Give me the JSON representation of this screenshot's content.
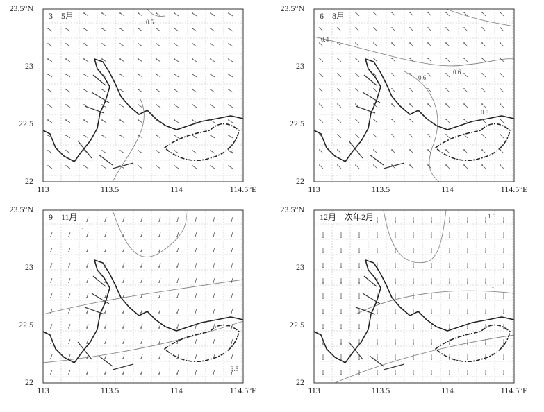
{
  "panels": [
    {
      "label": "3—5月",
      "x_tick_labels": [
        "113",
        "113.5",
        "114",
        "114.5°E"
      ],
      "y_tick_labels": [
        "23.5°N",
        "23",
        "22.5",
        "22"
      ],
      "contour_labels": [
        "0.5",
        "2"
      ]
    },
    {
      "label": "6—8月",
      "x_tick_labels": [
        "113",
        "113.5",
        "114",
        "114.5°E"
      ],
      "y_tick_labels": [
        "23.5°N",
        "23",
        "22.5",
        "22"
      ],
      "contour_labels": [
        "0.4",
        "0.6",
        "0.6",
        "0.8"
      ]
    },
    {
      "label": "9—11月",
      "x_tick_labels": [
        "113",
        "113.5",
        "114",
        "114.5°E"
      ],
      "y_tick_labels": [
        "23.5°N",
        "23",
        "22.5",
        "22"
      ],
      "contour_labels": [
        "1",
        "3.5"
      ]
    },
    {
      "label": "12月—次年2月",
      "x_tick_labels": [
        "113",
        "113.5",
        "114",
        "114.5°E"
      ],
      "y_tick_labels": [
        "23.5°N",
        "23",
        "22.5",
        "22"
      ],
      "contour_labels": [
        "1.5",
        "1"
      ]
    }
  ]
}
